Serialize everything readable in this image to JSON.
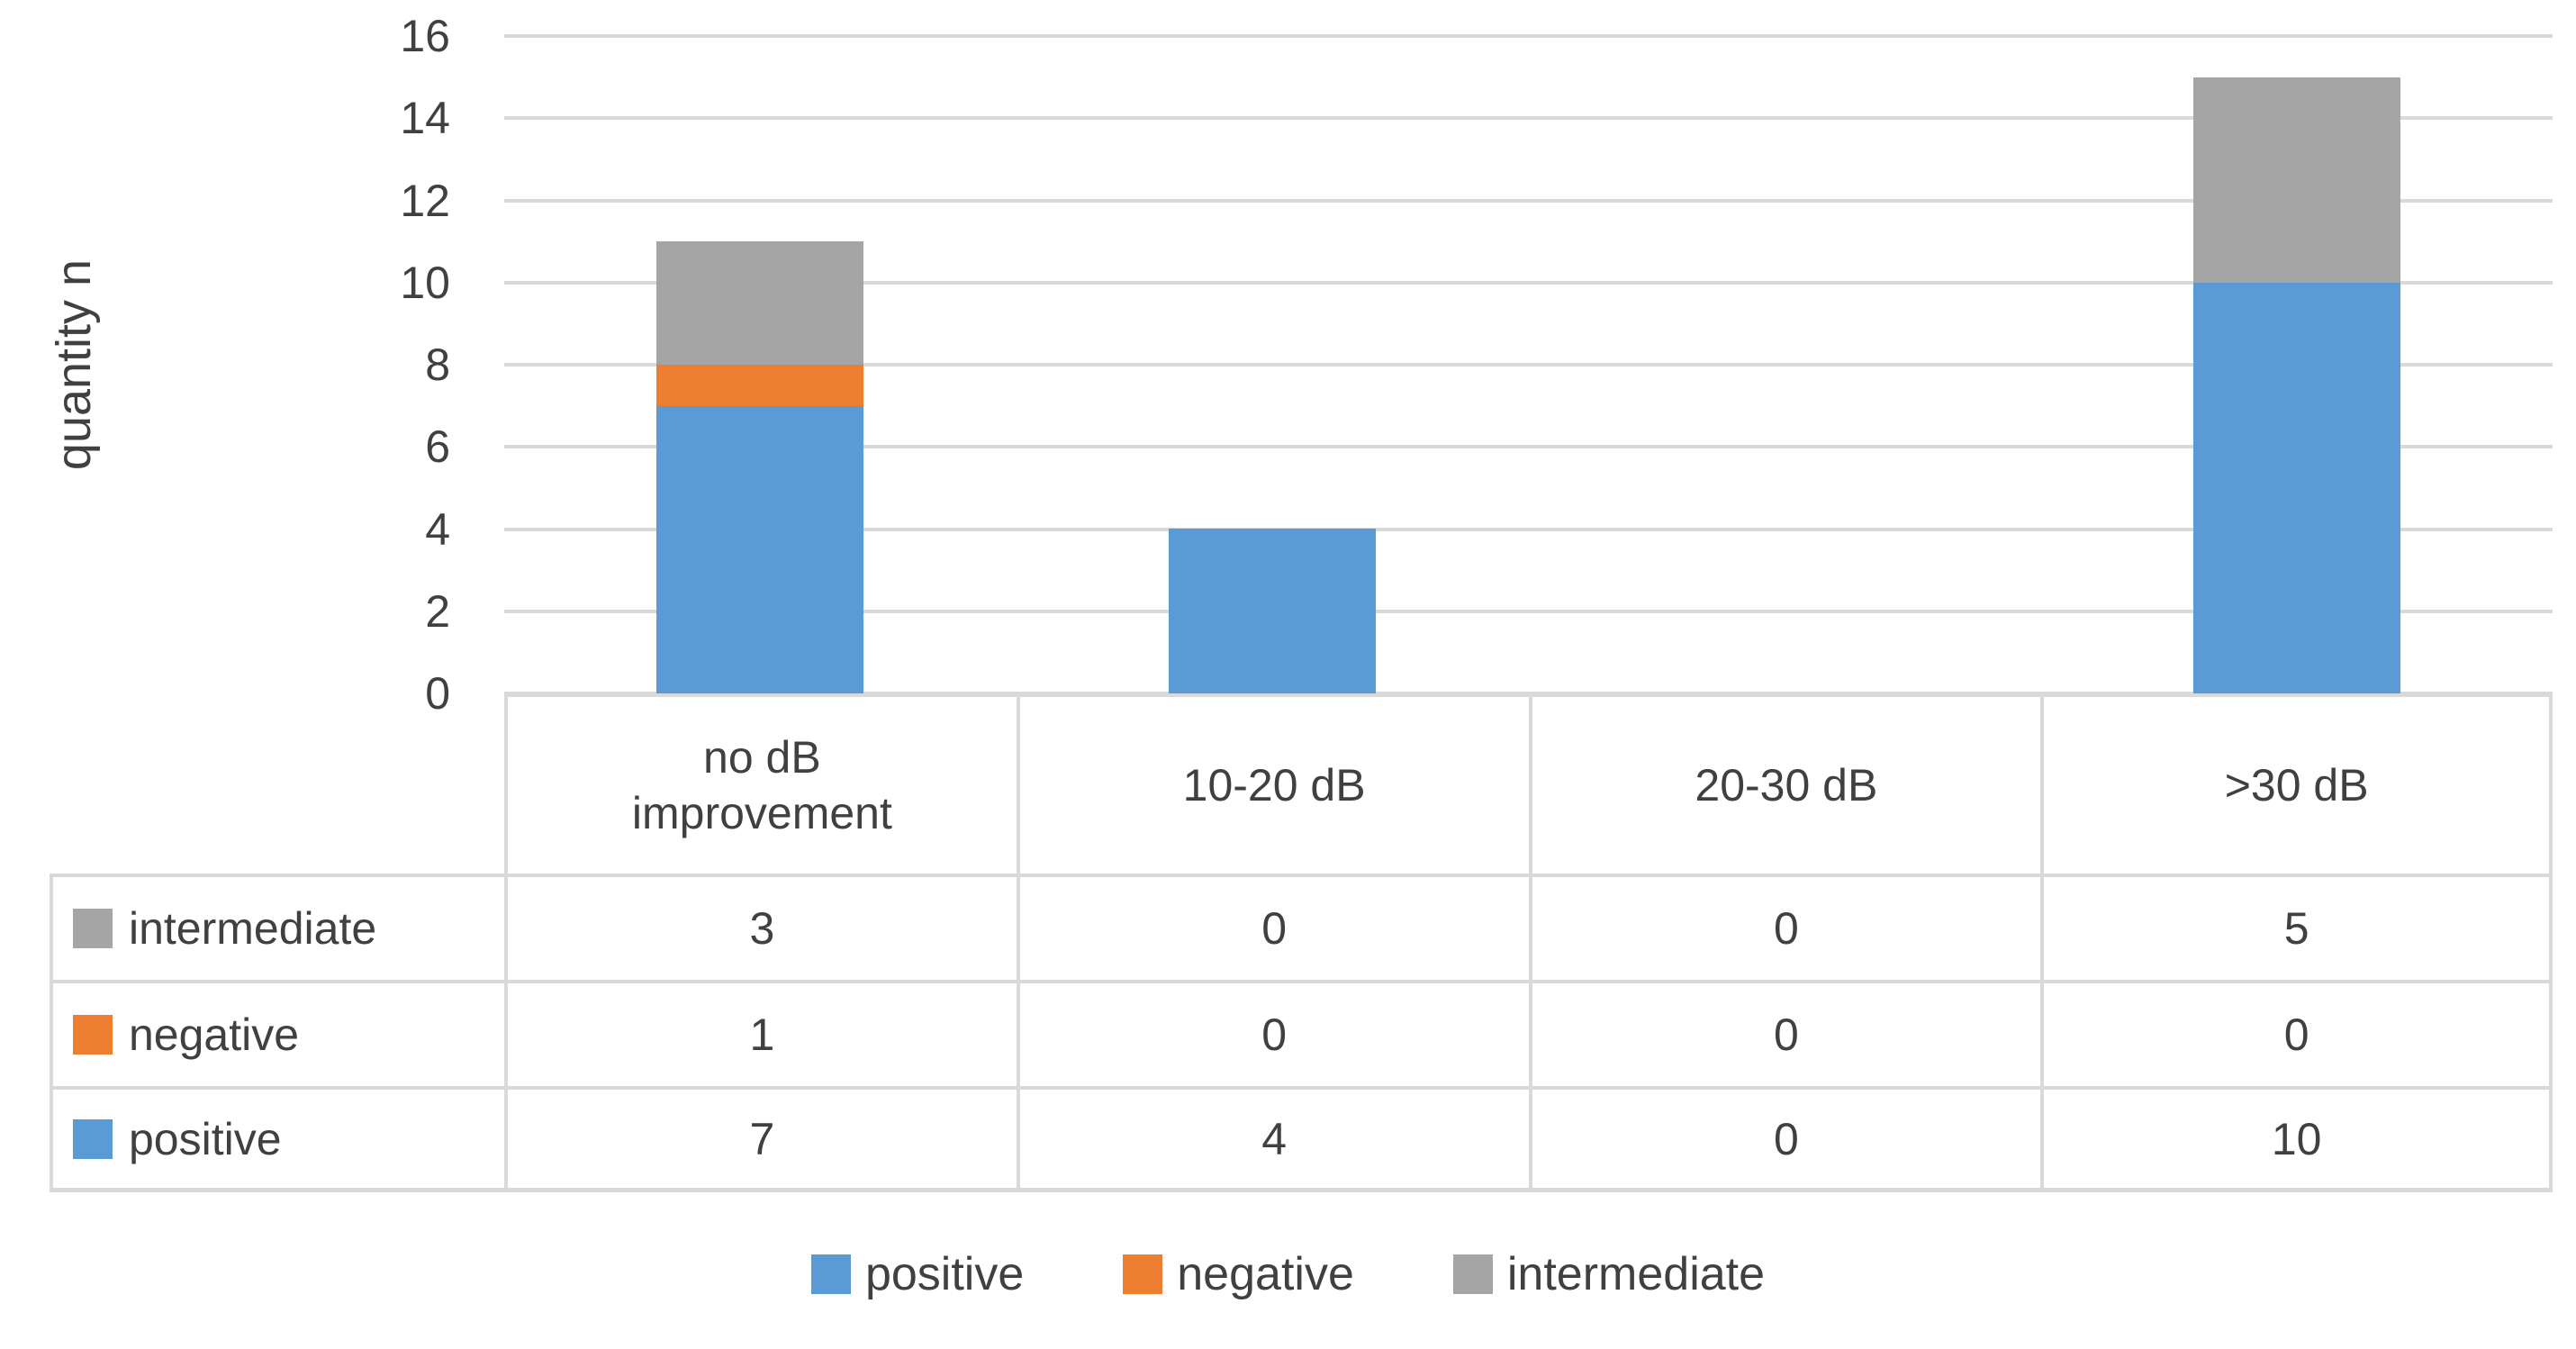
{
  "chart_data": {
    "type": "bar",
    "stacked": true,
    "title": "",
    "ylabel": "quantity n",
    "xlabel": "",
    "ylim": [
      0,
      16
    ],
    "ytick_step": 2,
    "grid": true,
    "legend_position": "bottom",
    "categories": [
      "no dB improvement",
      "10-20 dB",
      "20-30 dB",
      ">30 dB"
    ],
    "series": [
      {
        "name": "positive",
        "color": "#5B9BD5",
        "values": [
          7,
          4,
          0,
          10
        ]
      },
      {
        "name": "negative",
        "color": "#ED7D31",
        "values": [
          1,
          0,
          0,
          0
        ]
      },
      {
        "name": "intermediate",
        "color": "#A5A5A5",
        "values": [
          3,
          0,
          0,
          5
        ]
      }
    ],
    "table_row_order": [
      "intermediate",
      "negative",
      "positive"
    ],
    "colors": {
      "gridline": "#D9D9D9",
      "text": "#404040",
      "background": "#FFFFFF"
    }
  }
}
